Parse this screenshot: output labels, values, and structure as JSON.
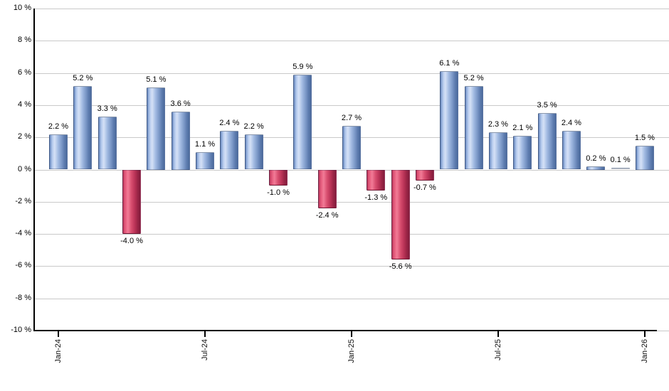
{
  "chart_data": {
    "type": "bar",
    "title": "",
    "x_axis": {
      "tick_labels": [
        "Jan-24",
        "Jul-24",
        "Jan-25",
        "Jul-25",
        "Jan-26"
      ],
      "tick_bar_indices": [
        0,
        6,
        12,
        18,
        24
      ]
    },
    "y_axis": {
      "tick_labels": [
        "10 %",
        "8 %",
        "6 %",
        "4 %",
        "2 %",
        "0 %",
        "-2 %",
        "-4 %",
        "-6 %",
        "-8 %",
        "-10 %"
      ],
      "tick_values": [
        10,
        8,
        6,
        4,
        2,
        0,
        -2,
        -4,
        -6,
        -8,
        -10
      ],
      "ylim": [
        -10,
        10
      ],
      "grid": true
    },
    "series": [
      {
        "values": [
          2.2,
          5.2,
          3.3,
          -4.0,
          5.1,
          3.6,
          1.1,
          2.4,
          2.2,
          -1.0,
          5.9,
          -2.4,
          2.7,
          -1.3,
          -5.6,
          -0.7,
          6.1,
          5.2,
          2.3,
          2.1,
          3.5,
          2.4,
          0.2,
          0.1,
          1.5
        ],
        "labels": [
          "2.2 %",
          "5.2 %",
          "3.3 %",
          "-4.0 %",
          "5.1 %",
          "3.6 %",
          "1.1 %",
          "2.4 %",
          "2.2 %",
          "-1.0 %",
          "5.9 %",
          "-2.4 %",
          "2.7 %",
          "-1.3 %",
          "-5.6 %",
          "-0.7 %",
          "6.1 %",
          "5.2 %",
          "2.3 %",
          "2.1 %",
          "3.5 %",
          "2.4 %",
          "0.2 %",
          "0.1 %",
          "1.5 %"
        ]
      }
    ],
    "colors": {
      "positive": "#6f8fc3",
      "negative": "#c9325b",
      "gridline": "#c9c9c9",
      "axis": "#000000",
      "label_text": "#000000",
      "background": "#ffffff"
    },
    "legend": null
  }
}
